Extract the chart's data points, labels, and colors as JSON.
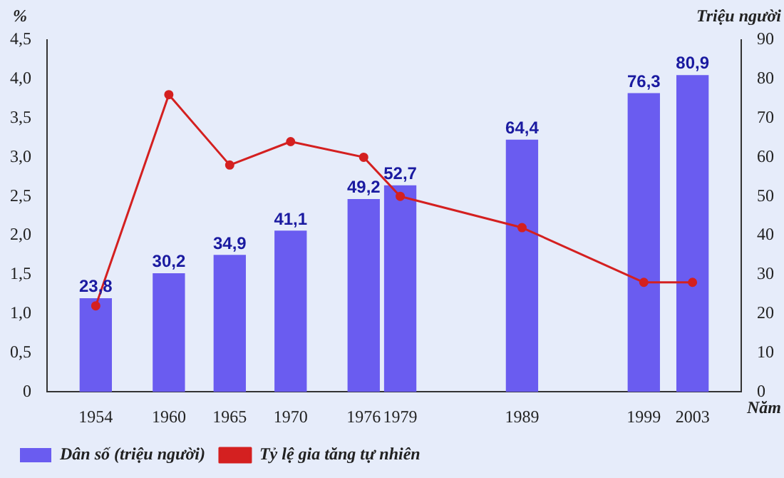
{
  "chart_data": {
    "type": "bar",
    "xlabel": "Năm",
    "ylabel": "%",
    "y2label": "Triệu người",
    "x": [
      1954,
      1960,
      1965,
      1970,
      1976,
      1979,
      1989,
      1999,
      2003
    ],
    "xlim": [
      1950,
      2007
    ],
    "xticks": [
      1954,
      1960,
      1965,
      1970,
      1976,
      1979,
      1989,
      1999,
      2003
    ],
    "ylim": [
      0,
      4.5
    ],
    "yticks": [
      {
        "value": 0,
        "label": "0"
      },
      {
        "value": 0.5,
        "label": "0,5"
      },
      {
        "value": 1,
        "label": "1,0"
      },
      {
        "value": 1.5,
        "label": "1,5"
      },
      {
        "value": 2,
        "label": "2,0"
      },
      {
        "value": 2.5,
        "label": "2,5"
      },
      {
        "value": 3,
        "label": "3,0"
      },
      {
        "value": 3.5,
        "label": "3,5"
      },
      {
        "value": 4,
        "label": "4,0"
      },
      {
        "value": 4.5,
        "label": "4,5"
      }
    ],
    "y2lim": [
      0,
      90
    ],
    "y2ticks": [
      0,
      10,
      20,
      30,
      40,
      50,
      60,
      70,
      80,
      90
    ],
    "series": [
      {
        "name": "Dân số (triệu người)",
        "axis": "y2",
        "color": "#6a5cf0",
        "values": [
          23.8,
          30.2,
          34.9,
          41.1,
          49.2,
          52.7,
          64.4,
          76.3,
          80.9
        ],
        "value_labels": [
          "23,8",
          "30,2",
          "34,9",
          "41,1",
          "49,2",
          "52,7",
          "64,4",
          "76,3",
          "80,9"
        ]
      },
      {
        "name": "Tỷ lệ gia tăng tự nhiên",
        "type": "line",
        "axis": "y",
        "color": "#d42020",
        "marker": "circle",
        "values": [
          1.1,
          3.8,
          2.9,
          3.2,
          3.0,
          2.5,
          2.1,
          1.4,
          1.4
        ]
      }
    ],
    "grid": false,
    "legend": "bottom"
  }
}
